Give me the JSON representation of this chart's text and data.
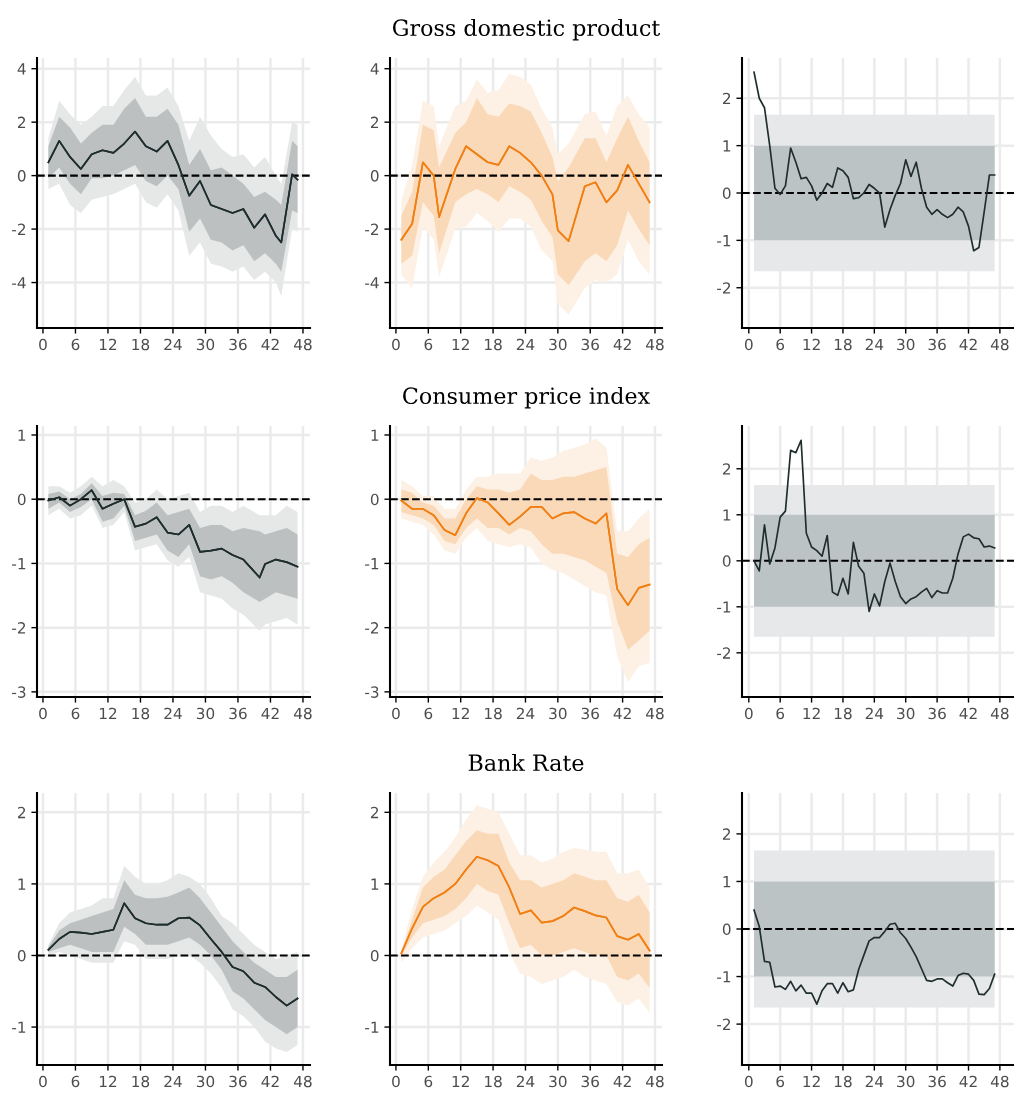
{
  "chart_data": [
    {
      "type": "line",
      "xlim": [
        -1.1,
        49.3
      ],
      "xticks": [
        0,
        6,
        12,
        18,
        24,
        30,
        36,
        42,
        48
      ],
      "ylim": [
        -5.7,
        4.4
      ],
      "yticks": [
        -4,
        -2,
        0,
        2,
        4
      ],
      "grid": true,
      "ref_lines": [
        {
          "axis": "y",
          "value": 0,
          "color": "#000000",
          "line_style": "dashed"
        }
      ],
      "series": [
        {
          "color": "#1f2d2d",
          "x": [
            1,
            3,
            5,
            7,
            9,
            11,
            13,
            15,
            17,
            19,
            21,
            23,
            25,
            27,
            29,
            31,
            33,
            35,
            37,
            39,
            41,
            43,
            44,
            46,
            47
          ],
          "values": [
            0.5,
            1.3,
            0.7,
            0.25,
            0.8,
            0.95,
            0.85,
            1.2,
            1.65,
            1.1,
            0.9,
            1.3,
            0.4,
            -0.75,
            -0.2,
            -1.1,
            -1.25,
            -1.4,
            -1.25,
            -1.95,
            -1.45,
            -2.25,
            -2.5,
            0.05,
            -0.15
          ],
          "lower": [
            -0.5,
            -0.3,
            -1.1,
            -1.4,
            -0.9,
            -0.8,
            -0.7,
            -0.5,
            -0.3,
            -1.0,
            -1.2,
            -0.7,
            -1.3,
            -3.0,
            -2.5,
            -3.3,
            -3.4,
            -3.6,
            -3.4,
            -3.9,
            -3.6,
            -4.0,
            -4.5,
            -2.0,
            -2.1
          ],
          "upper": [
            1.4,
            2.8,
            2.3,
            1.9,
            2.2,
            2.6,
            2.6,
            3.2,
            3.7,
            3.0,
            3.0,
            3.3,
            2.6,
            1.3,
            2.2,
            1.5,
            1.0,
            0.7,
            0.8,
            0.3,
            0.7,
            0.0,
            -0.3,
            2.0,
            1.9
          ]
        },
        {
          "color": "#1f2d2d",
          "x": [
            1,
            3,
            5,
            7,
            9,
            11,
            13,
            15,
            17,
            19,
            21,
            23,
            25,
            27,
            29,
            31,
            33,
            35,
            37,
            39,
            41,
            43,
            44,
            46,
            47
          ],
          "values": [
            0.5,
            1.3,
            0.7,
            0.25,
            0.8,
            0.95,
            0.85,
            1.2,
            1.65,
            1.1,
            0.9,
            1.3,
            0.4,
            -0.75,
            -0.2,
            -1.1,
            -1.25,
            -1.4,
            -1.25,
            -1.95,
            -1.45,
            -2.25,
            -2.5,
            0.05,
            -0.15
          ],
          "lower": [
            -0.1,
            0.3,
            -0.3,
            -0.7,
            -0.1,
            -0.1,
            0.0,
            0.2,
            0.4,
            -0.2,
            -0.4,
            0.0,
            -0.5,
            -2.1,
            -1.6,
            -2.4,
            -2.5,
            -2.8,
            -2.6,
            -3.2,
            -2.9,
            -3.3,
            -3.6,
            -1.3,
            -1.4
          ],
          "upper": [
            1.1,
            2.2,
            1.8,
            1.2,
            1.6,
            1.9,
            1.9,
            2.5,
            2.9,
            2.2,
            2.2,
            2.5,
            1.9,
            0.4,
            1.0,
            0.2,
            0.3,
            0.0,
            -0.3,
            -0.8,
            -0.6,
            -0.9,
            -1.1,
            1.3,
            1.1
          ]
        }
      ]
    },
    {
      "type": "line",
      "title": "Gross domestic product",
      "xlim": [
        -1.1,
        49.3
      ],
      "xticks": [
        0,
        6,
        12,
        18,
        24,
        30,
        36,
        42,
        48
      ],
      "ylim": [
        -5.7,
        4.4
      ],
      "yticks": [
        -4,
        -2,
        0,
        2,
        4
      ],
      "grid": true,
      "ref_lines": [
        {
          "axis": "y",
          "value": 0,
          "color": "#000000",
          "line_style": "dashed"
        }
      ],
      "series": [
        {
          "color": "#f07f14",
          "x": [
            1,
            3,
            5,
            7,
            8,
            11,
            13,
            15,
            17,
            19,
            21,
            23,
            25,
            27,
            29,
            30,
            32,
            35,
            37,
            39,
            41,
            43,
            45,
            47
          ],
          "values": [
            -2.4,
            -1.8,
            0.5,
            0.0,
            -1.55,
            0.25,
            1.1,
            0.8,
            0.5,
            0.4,
            1.1,
            0.85,
            0.5,
            0.0,
            -0.7,
            -2.05,
            -2.45,
            -0.4,
            -0.25,
            -1.0,
            -0.55,
            0.4,
            -0.3,
            -1.0
          ],
          "lower": [
            -3.7,
            -4.2,
            -1.9,
            -2.4,
            -3.8,
            -2.0,
            -1.9,
            -1.4,
            -1.7,
            -2.1,
            -1.6,
            -1.6,
            -1.9,
            -2.8,
            -3.2,
            -4.8,
            -5.2,
            -4.2,
            -3.9,
            -4.0,
            -3.7,
            -2.4,
            -3.2,
            -3.7
          ],
          "upper": [
            -0.9,
            0.4,
            2.8,
            2.6,
            1.1,
            2.6,
            2.8,
            3.6,
            3.1,
            3.2,
            3.8,
            3.7,
            3.4,
            2.5,
            1.8,
            0.8,
            1.2,
            2.3,
            2.4,
            1.5,
            2.6,
            3.0,
            2.3,
            1.8
          ]
        },
        {
          "color": "#f07f14",
          "x": [
            1,
            3,
            5,
            7,
            8,
            11,
            13,
            15,
            17,
            19,
            21,
            23,
            25,
            27,
            29,
            30,
            32,
            35,
            37,
            39,
            41,
            43,
            45,
            47
          ],
          "values": [
            -2.4,
            -1.8,
            0.5,
            0.0,
            -1.55,
            0.25,
            1.1,
            0.8,
            0.5,
            0.4,
            1.1,
            0.85,
            0.5,
            0.0,
            -0.7,
            -2.05,
            -2.45,
            -0.4,
            -0.25,
            -1.0,
            -0.55,
            0.4,
            -0.3,
            -1.0
          ],
          "lower": [
            -3.3,
            -3.0,
            -1.0,
            -1.5,
            -2.9,
            -1.0,
            -0.7,
            -0.5,
            -0.7,
            -1.0,
            -0.4,
            -0.6,
            -0.9,
            -1.7,
            -2.3,
            -3.7,
            -4.1,
            -3.2,
            -2.9,
            -3.2,
            -2.6,
            -1.3,
            -2.0,
            -2.6
          ],
          "upper": [
            -1.5,
            -0.6,
            1.9,
            1.7,
            0.3,
            1.6,
            2.0,
            2.9,
            2.3,
            2.2,
            2.7,
            2.6,
            2.4,
            1.6,
            0.7,
            -0.2,
            0.3,
            1.4,
            1.4,
            0.5,
            1.4,
            2.2,
            1.3,
            0.5
          ]
        }
      ]
    },
    {
      "type": "line",
      "xlim": [
        -1.3,
        50.7
      ],
      "xticks": [
        0,
        6,
        12,
        18,
        24,
        30,
        36,
        42,
        48
      ],
      "ylim": [
        -2.85,
        2.85
      ],
      "yticks": [
        -2,
        -1,
        0,
        1,
        2
      ],
      "grid": true,
      "bands": [
        {
          "axis": "y",
          "from": -1.65,
          "to": 1.65,
          "color": "#e6e8e9"
        },
        {
          "axis": "y",
          "from": -1,
          "to": 1,
          "color": "#bcc3c5"
        }
      ],
      "ref_lines": [
        {
          "axis": "y",
          "value": 0,
          "color": "#000000",
          "line_style": "dashed"
        }
      ],
      "series": [
        {
          "color": "#1f2d2d",
          "x": [
            1,
            2,
            3,
            4,
            5,
            6,
            7,
            8,
            9,
            10,
            11,
            12,
            13,
            14,
            15,
            16,
            17,
            18,
            19,
            20,
            21,
            22,
            23,
            24,
            25,
            26,
            27,
            28,
            29,
            30,
            31,
            32,
            33,
            34,
            35,
            36,
            37,
            38,
            39,
            40,
            41,
            42,
            43,
            44,
            45,
            46,
            47
          ],
          "values": [
            2.55,
            2.0,
            1.8,
            1.0,
            0.1,
            -0.03,
            0.15,
            0.95,
            0.65,
            0.3,
            0.33,
            0.15,
            -0.15,
            0.0,
            0.2,
            0.12,
            0.53,
            0.47,
            0.33,
            -0.12,
            -0.1,
            0.0,
            0.18,
            0.1,
            0.0,
            -0.72,
            -0.35,
            -0.05,
            0.2,
            0.7,
            0.35,
            0.65,
            0.1,
            -0.3,
            -0.45,
            -0.35,
            -0.45,
            -0.52,
            -0.45,
            -0.3,
            -0.4,
            -0.7,
            -1.22,
            -1.15,
            -0.4,
            0.38,
            0.38
          ]
        }
      ]
    },
    {
      "type": "line",
      "xlim": [
        -1.1,
        49.3
      ],
      "xticks": [
        0,
        6,
        12,
        18,
        24,
        30,
        36,
        42,
        48
      ],
      "ylim": [
        -3.08,
        1.14
      ],
      "yticks": [
        -3,
        -2,
        -1,
        0,
        1
      ],
      "grid": true,
      "ref_lines": [
        {
          "axis": "y",
          "value": 0,
          "color": "#000000",
          "line_style": "dashed"
        }
      ],
      "series": [
        {
          "color": "#1f2d2d",
          "x": [
            1,
            3,
            5,
            7,
            9,
            11,
            13,
            15,
            17,
            19,
            21,
            23,
            25,
            27,
            29,
            31,
            33,
            35,
            37,
            40,
            41,
            43,
            45,
            47
          ],
          "values": [
            -0.02,
            0.03,
            -0.1,
            0.0,
            0.14,
            -0.15,
            -0.07,
            0.0,
            -0.43,
            -0.38,
            -0.28,
            -0.52,
            -0.55,
            -0.4,
            -0.82,
            -0.8,
            -0.77,
            -0.87,
            -0.94,
            -1.22,
            -1.01,
            -0.94,
            -0.98,
            -1.05
          ],
          "lower": [
            -0.25,
            -0.15,
            -0.3,
            -0.25,
            -0.1,
            -0.45,
            -0.4,
            -0.2,
            -0.8,
            -0.75,
            -0.7,
            -0.95,
            -1.05,
            -0.9,
            -1.45,
            -1.5,
            -1.55,
            -1.7,
            -1.8,
            -2.05,
            -1.95,
            -1.9,
            -1.85,
            -1.95
          ],
          "upper": [
            0.2,
            0.2,
            0.1,
            0.2,
            0.35,
            0.2,
            0.3,
            0.2,
            -0.05,
            0.0,
            0.15,
            0.0,
            0.05,
            0.1,
            -0.2,
            -0.1,
            -0.1,
            -0.2,
            -0.1,
            -0.25,
            -0.25,
            -0.25,
            -0.1,
            -0.2
          ]
        },
        {
          "color": "#1f2d2d",
          "x": [
            1,
            3,
            5,
            7,
            9,
            11,
            13,
            15,
            17,
            19,
            21,
            23,
            25,
            27,
            29,
            31,
            33,
            35,
            37,
            40,
            41,
            43,
            45,
            47
          ],
          "values": [
            -0.02,
            0.03,
            -0.1,
            0.0,
            0.14,
            -0.15,
            -0.07,
            0.0,
            -0.43,
            -0.38,
            -0.28,
            -0.52,
            -0.55,
            -0.4,
            -0.82,
            -0.8,
            -0.77,
            -0.87,
            -0.94,
            -1.22,
            -1.01,
            -0.94,
            -0.98,
            -1.05
          ],
          "lower": [
            -0.15,
            -0.05,
            -0.2,
            -0.12,
            0.0,
            -0.35,
            -0.3,
            -0.1,
            -0.65,
            -0.6,
            -0.55,
            -0.8,
            -0.9,
            -0.7,
            -1.2,
            -1.25,
            -1.2,
            -1.3,
            -1.45,
            -1.6,
            -1.55,
            -1.45,
            -1.5,
            -1.55
          ],
          "upper": [
            0.08,
            0.12,
            0.0,
            0.08,
            0.25,
            0.05,
            0.1,
            0.08,
            -0.25,
            -0.18,
            -0.05,
            -0.25,
            -0.2,
            -0.15,
            -0.45,
            -0.4,
            -0.4,
            -0.5,
            -0.45,
            -0.5,
            -0.55,
            -0.5,
            -0.45,
            -0.55
          ]
        }
      ]
    },
    {
      "type": "line",
      "title": "Consumer price index",
      "xlim": [
        -1.1,
        49.3
      ],
      "xticks": [
        0,
        6,
        12,
        18,
        24,
        30,
        36,
        42,
        48
      ],
      "ylim": [
        -3.08,
        1.14
      ],
      "yticks": [
        -3,
        -2,
        -1,
        0,
        1
      ],
      "grid": true,
      "ref_lines": [
        {
          "axis": "y",
          "value": 0,
          "color": "#000000",
          "line_style": "dashed"
        }
      ],
      "series": [
        {
          "color": "#f07f14",
          "x": [
            1,
            3,
            5,
            7,
            9,
            11,
            13,
            15,
            17,
            19,
            21,
            23,
            25,
            27,
            29,
            31,
            33,
            35,
            37,
            39,
            41,
            43,
            45,
            47
          ],
          "values": [
            -0.02,
            -0.15,
            -0.15,
            -0.25,
            -0.48,
            -0.56,
            -0.22,
            0.02,
            -0.05,
            -0.22,
            -0.4,
            -0.27,
            -0.12,
            -0.12,
            -0.3,
            -0.22,
            -0.2,
            -0.3,
            -0.38,
            -0.22,
            -1.4,
            -1.65,
            -1.38,
            -1.33
          ],
          "lower": [
            -0.3,
            -0.35,
            -0.4,
            -0.55,
            -0.8,
            -0.85,
            -0.6,
            -0.45,
            -0.65,
            -0.7,
            -0.75,
            -0.7,
            -0.75,
            -1.0,
            -1.1,
            -1.15,
            -1.25,
            -1.35,
            -1.45,
            -1.5,
            -2.45,
            -2.85,
            -2.6,
            -2.55
          ],
          "upper": [
            0.3,
            0.2,
            0.05,
            0.05,
            -0.15,
            -0.15,
            0.15,
            0.35,
            0.35,
            0.4,
            0.4,
            0.4,
            0.65,
            0.6,
            0.65,
            0.75,
            0.8,
            0.85,
            0.95,
            0.8,
            -0.5,
            -0.5,
            -0.3,
            -0.15
          ]
        },
        {
          "color": "#f07f14",
          "x": [
            1,
            3,
            5,
            7,
            9,
            11,
            13,
            15,
            17,
            19,
            21,
            23,
            25,
            27,
            29,
            31,
            33,
            35,
            37,
            39,
            41,
            43,
            45,
            47
          ],
          "values": [
            -0.02,
            -0.15,
            -0.15,
            -0.25,
            -0.48,
            -0.56,
            -0.22,
            0.02,
            -0.05,
            -0.22,
            -0.4,
            -0.27,
            -0.12,
            -0.12,
            -0.3,
            -0.22,
            -0.2,
            -0.3,
            -0.38,
            -0.22,
            -1.4,
            -1.65,
            -1.38,
            -1.33
          ],
          "lower": [
            -0.2,
            -0.25,
            -0.3,
            -0.4,
            -0.65,
            -0.7,
            -0.45,
            -0.3,
            -0.45,
            -0.45,
            -0.55,
            -0.45,
            -0.5,
            -0.7,
            -0.85,
            -0.85,
            -0.9,
            -0.95,
            -1.05,
            -1.15,
            -1.9,
            -2.35,
            -2.2,
            -2.05
          ],
          "upper": [
            0.15,
            0.1,
            -0.05,
            -0.1,
            -0.3,
            -0.3,
            0.0,
            0.2,
            0.15,
            0.15,
            0.1,
            0.15,
            0.4,
            0.3,
            0.3,
            0.35,
            0.35,
            0.4,
            0.45,
            0.5,
            -0.85,
            -0.9,
            -0.7,
            -0.6
          ]
        }
      ]
    },
    {
      "type": "line",
      "xlim": [
        -1.3,
        50.7
      ],
      "xticks": [
        0,
        6,
        12,
        18,
        24,
        30,
        36,
        42,
        48
      ],
      "ylim": [
        -2.96,
        2.93
      ],
      "yticks": [
        -2,
        -1,
        0,
        1,
        2
      ],
      "grid": true,
      "bands": [
        {
          "axis": "y",
          "from": -1.65,
          "to": 1.65,
          "color": "#e6e8e9"
        },
        {
          "axis": "y",
          "from": -1,
          "to": 1,
          "color": "#bcc3c5"
        }
      ],
      "ref_lines": [
        {
          "axis": "y",
          "value": 0,
          "color": "#000000",
          "line_style": "dashed"
        }
      ],
      "series": [
        {
          "color": "#1f2d2d",
          "x": [
            1,
            2,
            3,
            4,
            5,
            6,
            7,
            8,
            9,
            10,
            11,
            12,
            13,
            14,
            15,
            16,
            17,
            18,
            19,
            20,
            21,
            22,
            23,
            24,
            25,
            26,
            27,
            28,
            29,
            30,
            31,
            32,
            33,
            34,
            35,
            36,
            37,
            38,
            39,
            40,
            41,
            42,
            43,
            44,
            45,
            46,
            47
          ],
          "values": [
            0.0,
            -0.22,
            0.78,
            -0.07,
            0.28,
            0.95,
            1.08,
            2.4,
            2.35,
            2.62,
            0.6,
            0.3,
            0.22,
            0.1,
            0.55,
            -0.68,
            -0.75,
            -0.38,
            -0.72,
            0.4,
            -0.12,
            -0.27,
            -1.1,
            -0.72,
            -0.98,
            -0.45,
            -0.05,
            -0.45,
            -0.78,
            -0.93,
            -0.83,
            -0.78,
            -0.68,
            -0.6,
            -0.8,
            -0.65,
            -0.7,
            -0.7,
            -0.38,
            0.15,
            0.52,
            0.58,
            0.5,
            0.48,
            0.3,
            0.32,
            0.28
          ]
        }
      ]
    },
    {
      "type": "line",
      "xlim": [
        -1.1,
        49.3
      ],
      "xticks": [
        0,
        6,
        12,
        18,
        24,
        30,
        36,
        42,
        48
      ],
      "ylim": [
        -1.53,
        2.27
      ],
      "yticks": [
        -1,
        0,
        1,
        2
      ],
      "grid": true,
      "ref_lines": [
        {
          "axis": "y",
          "value": 0,
          "color": "#000000",
          "line_style": "dashed"
        }
      ],
      "series": [
        {
          "color": "#1f2d2d",
          "x": [
            1,
            3,
            5,
            7,
            9,
            11,
            13,
            15,
            17,
            19,
            21,
            23,
            25,
            27,
            29,
            31,
            33,
            35,
            37,
            39,
            41,
            43,
            45,
            47
          ],
          "values": [
            0.08,
            0.23,
            0.33,
            0.32,
            0.3,
            0.33,
            0.36,
            0.73,
            0.52,
            0.45,
            0.43,
            0.43,
            0.52,
            0.53,
            0.42,
            0.23,
            0.05,
            -0.16,
            -0.22,
            -0.38,
            -0.44,
            -0.58,
            -0.7,
            -0.6
          ],
          "lower": [
            0.0,
            0.05,
            0.0,
            -0.05,
            -0.1,
            -0.1,
            -0.1,
            0.2,
            0.15,
            -0.05,
            -0.05,
            -0.05,
            0.0,
            0.0,
            -0.1,
            -0.25,
            -0.45,
            -0.75,
            -0.85,
            -1.0,
            -1.2,
            -1.3,
            -1.35,
            -1.25
          ],
          "upper": [
            0.15,
            0.45,
            0.6,
            0.65,
            0.7,
            0.8,
            0.8,
            1.25,
            1.1,
            1.0,
            1.0,
            1.05,
            1.15,
            1.1,
            1.0,
            0.8,
            0.55,
            0.45,
            0.3,
            0.15,
            0.05,
            -0.05,
            0.0,
            0.05
          ]
        },
        {
          "color": "#1f2d2d",
          "x": [
            1,
            3,
            5,
            7,
            9,
            11,
            13,
            15,
            17,
            19,
            21,
            23,
            25,
            27,
            29,
            31,
            33,
            35,
            37,
            39,
            41,
            43,
            45,
            47
          ],
          "values": [
            0.08,
            0.23,
            0.33,
            0.32,
            0.3,
            0.33,
            0.36,
            0.73,
            0.52,
            0.45,
            0.43,
            0.43,
            0.52,
            0.53,
            0.42,
            0.23,
            0.05,
            -0.16,
            -0.22,
            -0.38,
            -0.44,
            -0.58,
            -0.7,
            -0.6
          ],
          "lower": [
            0.05,
            0.1,
            0.15,
            0.1,
            0.05,
            0.05,
            0.05,
            0.4,
            0.3,
            0.15,
            0.15,
            0.15,
            0.2,
            0.25,
            0.15,
            0.0,
            -0.2,
            -0.5,
            -0.6,
            -0.75,
            -0.9,
            -1.0,
            -1.1,
            -1.0
          ],
          "upper": [
            0.12,
            0.35,
            0.45,
            0.5,
            0.55,
            0.6,
            0.65,
            1.05,
            0.85,
            0.8,
            0.8,
            0.82,
            0.88,
            0.95,
            0.8,
            0.6,
            0.4,
            0.2,
            0.05,
            -0.1,
            -0.2,
            -0.3,
            -0.3,
            -0.2
          ]
        }
      ]
    },
    {
      "type": "line",
      "title": "Bank Rate",
      "xlim": [
        -1.1,
        49.3
      ],
      "xticks": [
        0,
        6,
        12,
        18,
        24,
        30,
        36,
        42,
        48
      ],
      "ylim": [
        -1.53,
        2.27
      ],
      "yticks": [
        -1,
        0,
        1,
        2
      ],
      "grid": true,
      "ref_lines": [
        {
          "axis": "y",
          "value": 0,
          "color": "#000000",
          "line_style": "dashed"
        }
      ],
      "series": [
        {
          "color": "#f07f14",
          "x": [
            1,
            3,
            5,
            7,
            9,
            11,
            13,
            15,
            17,
            19,
            21,
            23,
            25,
            27,
            29,
            31,
            33,
            35,
            37,
            39,
            41,
            43,
            45,
            47
          ],
          "values": [
            0.03,
            0.38,
            0.68,
            0.8,
            0.88,
            1.0,
            1.2,
            1.38,
            1.33,
            1.25,
            0.95,
            0.58,
            0.63,
            0.46,
            0.48,
            0.55,
            0.67,
            0.62,
            0.56,
            0.53,
            0.27,
            0.22,
            0.3,
            0.07
          ],
          "lower": [
            -0.1,
            0.1,
            0.25,
            0.3,
            0.35,
            0.45,
            0.55,
            0.7,
            0.6,
            0.5,
            0.05,
            -0.25,
            -0.3,
            -0.4,
            -0.35,
            -0.3,
            -0.2,
            -0.3,
            -0.35,
            -0.4,
            -0.65,
            -0.7,
            -0.6,
            -0.8
          ],
          "upper": [
            0.08,
            0.65,
            1.1,
            1.3,
            1.45,
            1.65,
            1.9,
            2.1,
            2.05,
            2.0,
            1.7,
            1.4,
            1.4,
            1.3,
            1.35,
            1.45,
            1.5,
            1.48,
            1.45,
            1.45,
            1.15,
            1.15,
            1.2,
            0.95
          ]
        },
        {
          "color": "#f07f14",
          "x": [
            1,
            3,
            5,
            7,
            9,
            11,
            13,
            15,
            17,
            19,
            21,
            23,
            25,
            27,
            29,
            31,
            33,
            35,
            37,
            39,
            41,
            43,
            45,
            47
          ],
          "values": [
            0.03,
            0.38,
            0.68,
            0.8,
            0.88,
            1.0,
            1.2,
            1.38,
            1.33,
            1.25,
            0.95,
            0.58,
            0.63,
            0.46,
            0.48,
            0.55,
            0.67,
            0.62,
            0.56,
            0.53,
            0.27,
            0.22,
            0.3,
            0.07
          ],
          "lower": [
            0.0,
            0.25,
            0.45,
            0.5,
            0.55,
            0.65,
            0.8,
            1.0,
            0.9,
            0.85,
            0.45,
            0.1,
            0.15,
            0.0,
            0.0,
            0.05,
            0.1,
            0.05,
            0.0,
            0.0,
            -0.3,
            -0.35,
            -0.25,
            -0.45
          ],
          "upper": [
            0.05,
            0.5,
            0.95,
            1.1,
            1.2,
            1.4,
            1.6,
            1.75,
            1.7,
            1.7,
            1.3,
            1.05,
            1.05,
            0.95,
            1.0,
            1.05,
            1.15,
            1.1,
            1.05,
            1.05,
            0.8,
            0.75,
            0.85,
            0.6
          ]
        }
      ]
    },
    {
      "type": "line",
      "xlim": [
        -1.3,
        50.7
      ],
      "xticks": [
        0,
        6,
        12,
        18,
        24,
        30,
        36,
        42,
        48
      ],
      "ylim": [
        -2.86,
        2.86
      ],
      "yticks": [
        -2,
        -1,
        0,
        1,
        2
      ],
      "grid": true,
      "bands": [
        {
          "axis": "y",
          "from": -1.65,
          "to": 1.65,
          "color": "#e6e8e9"
        },
        {
          "axis": "y",
          "from": -1,
          "to": 1,
          "color": "#bcc3c5"
        }
      ],
      "ref_lines": [
        {
          "axis": "y",
          "value": 0,
          "color": "#000000",
          "line_style": "dashed"
        }
      ],
      "series": [
        {
          "color": "#1f2d2d",
          "x": [
            1,
            2,
            3,
            4,
            5,
            6,
            7,
            8,
            9,
            10,
            11,
            12,
            13,
            14,
            15,
            16,
            17,
            18,
            19,
            20,
            21,
            22,
            23,
            24,
            25,
            26,
            27,
            28,
            29,
            30,
            31,
            32,
            33,
            34,
            35,
            36,
            37,
            38,
            39,
            40,
            41,
            42,
            43,
            44,
            45,
            46,
            47
          ],
          "values": [
            0.4,
            0.05,
            -0.68,
            -0.7,
            -1.22,
            -1.2,
            -1.27,
            -1.1,
            -1.3,
            -1.18,
            -1.35,
            -1.35,
            -1.58,
            -1.3,
            -1.15,
            -1.15,
            -1.35,
            -1.13,
            -1.32,
            -1.28,
            -0.85,
            -0.55,
            -0.25,
            -0.18,
            -0.18,
            -0.05,
            0.1,
            0.12,
            -0.08,
            -0.2,
            -0.38,
            -0.58,
            -0.83,
            -1.08,
            -1.1,
            -1.05,
            -1.05,
            -1.13,
            -1.2,
            -0.98,
            -0.93,
            -0.95,
            -1.08,
            -1.37,
            -1.38,
            -1.25,
            -0.95
          ]
        }
      ]
    }
  ]
}
